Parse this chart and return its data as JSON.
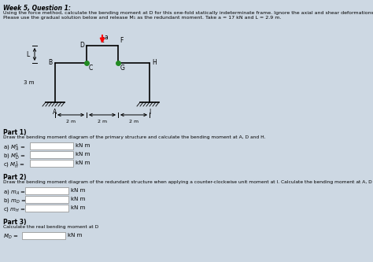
{
  "title": "Week 5, Question 1:",
  "background_color": "#cdd8e3",
  "intro_line1": "Using the force method, calculate the bending moment at D for this one-fold statically indeterminate frame. Ignore the axial and shear deformations and consider EI constant for the whole frame.",
  "intro_line2": "Please use the gradual solution below and release M₁ as the redundant moment. Take a = 17 kN and L = 2.9 m.",
  "part1_title": "Part 1)",
  "part1_desc": "Draw the bending moment diagram of the primary structure and calculate the bending moment at A, D and H.",
  "part2_title": "Part 2)",
  "part2_desc": "Draw the bending moment diagram of the redundant structure when applying a counter-clockwise unit moment at I. Calculate the bending moment at A, D and H.",
  "part3_title": "Part 3)",
  "part3_desc": "Calculate the real bending moment at D",
  "unit": "kN m"
}
